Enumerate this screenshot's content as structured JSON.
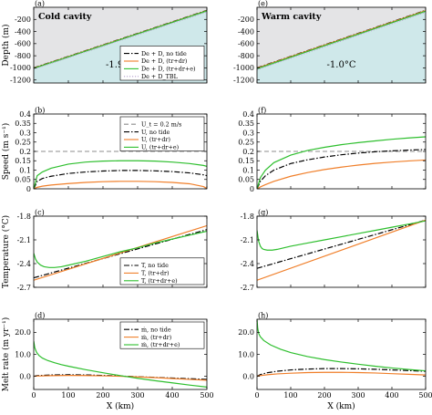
{
  "chart_data": [
    {
      "id": "a",
      "panel_label": "(a)",
      "type": "line",
      "title": "Cold cavity",
      "ylabel": "Depth (m)",
      "xlabel": "",
      "xlim": [
        0,
        500
      ],
      "ylim": [
        -1250,
        0
      ],
      "xticks": [
        0,
        100,
        200,
        300,
        400,
        500
      ],
      "yticks": [
        -1200,
        -1000,
        -800,
        -600,
        -400,
        -200
      ],
      "ytick_labels": [
        "-1200",
        "-1000",
        "-800",
        "-600",
        "-400",
        "-200"
      ],
      "show_xtick_labels": false,
      "annotation": "-1.9°C",
      "ocean_color": "#cfe8ea",
      "ice_color": "#e4e4e6",
      "legend_position": "lower-right",
      "ice_base": {
        "x": [
          0,
          500
        ],
        "y": [
          -1000,
          -50
        ]
      },
      "series": [
        {
          "name": "De + D, no tide",
          "style": "dashdot",
          "color": "#000000",
          "x": [
            0,
            500
          ],
          "y": [
            -1000,
            -50
          ]
        },
        {
          "name": "De + D, (tr+dr)",
          "style": "solid",
          "color": "#f07f2a",
          "x": [
            0,
            500
          ],
          "y": [
            -1005,
            -55
          ]
        },
        {
          "name": "De + D, (tr+dr+e)",
          "style": "solid",
          "color": "#2ebf2e",
          "x": [
            0,
            500
          ],
          "y": [
            -1010,
            -60
          ]
        },
        {
          "name": "De + D_TBL",
          "style": "dotted",
          "color": "#b6a2cf",
          "x": [
            0,
            500
          ],
          "y": [
            -1020,
            -75
          ]
        }
      ]
    },
    {
      "id": "e",
      "panel_label": "(e)",
      "type": "line",
      "title": "Warm cavity",
      "ylabel": "",
      "xlabel": "",
      "xlim": [
        0,
        500
      ],
      "ylim": [
        -1250,
        0
      ],
      "xticks": [
        0,
        100,
        200,
        300,
        400,
        500
      ],
      "yticks": [
        -1200,
        -1000,
        -800,
        -600,
        -400,
        -200
      ],
      "ytick_labels": [
        "-1200",
        "-1000",
        "-800",
        "-600",
        "-400",
        "-200"
      ],
      "show_xtick_labels": false,
      "annotation": "-1.0°C",
      "ocean_color": "#cfe8ea",
      "ice_color": "#e4e4e6",
      "ice_base": {
        "x": [
          0,
          500
        ],
        "y": [
          -1000,
          -50
        ]
      },
      "series": [
        {
          "style": "dashdot",
          "color": "#000000",
          "x": [
            0,
            500
          ],
          "y": [
            -1000,
            -50
          ]
        },
        {
          "style": "solid",
          "color": "#f07f2a",
          "x": [
            0,
            500
          ],
          "y": [
            -1005,
            -55
          ]
        },
        {
          "style": "solid",
          "color": "#2ebf2e",
          "x": [
            0,
            500
          ],
          "y": [
            -1015,
            -65
          ]
        },
        {
          "style": "dotted",
          "color": "#b6a2cf",
          "x": [
            0,
            500
          ],
          "y": [
            -1030,
            -80
          ]
        }
      ]
    },
    {
      "id": "b",
      "panel_label": "(b)",
      "type": "line",
      "ylabel": "Speed (m s⁻¹)",
      "xlabel": "",
      "xlim": [
        0,
        500
      ],
      "ylim": [
        0,
        0.4
      ],
      "xticks": [
        0,
        100,
        200,
        300,
        400,
        500
      ],
      "yticks": [
        0,
        0.05,
        0.1,
        0.15,
        0.2,
        0.25,
        0.3,
        0.35,
        0.4
      ],
      "ytick_labels": [
        "0",
        "0.05",
        "0.1",
        "0.15",
        "0.2",
        "0.25",
        "0.3",
        "0.35",
        "0.4"
      ],
      "show_xtick_labels": false,
      "legend_position": "upper-right",
      "series": [
        {
          "name": "U_t = 0.2 m/s",
          "style": "dashed",
          "color": "#8c8c8c",
          "x": [
            0,
            500
          ],
          "y": [
            0.2,
            0.2
          ]
        },
        {
          "name": "U, no tide",
          "style": "dashdot",
          "color": "#000000",
          "x": [
            0,
            10,
            25,
            50,
            100,
            150,
            200,
            250,
            300,
            350,
            400,
            450,
            490,
            500
          ],
          "y": [
            0.0,
            0.04,
            0.055,
            0.067,
            0.082,
            0.09,
            0.095,
            0.098,
            0.098,
            0.096,
            0.092,
            0.085,
            0.075,
            0.07
          ]
        },
        {
          "name": "U, (tr+dr)",
          "style": "solid",
          "color": "#f07f2a",
          "x": [
            0,
            10,
            25,
            50,
            100,
            150,
            200,
            250,
            300,
            350,
            400,
            450,
            490,
            500
          ],
          "y": [
            0.0,
            0.008,
            0.014,
            0.02,
            0.028,
            0.034,
            0.038,
            0.04,
            0.04,
            0.038,
            0.034,
            0.027,
            0.012,
            0.002
          ]
        },
        {
          "name": "U, (tr+dr+e)",
          "style": "solid",
          "color": "#2ebf2e",
          "x": [
            0,
            10,
            25,
            50,
            100,
            150,
            200,
            250,
            300,
            350,
            400,
            450,
            490,
            500
          ],
          "y": [
            0.0,
            0.07,
            0.09,
            0.11,
            0.132,
            0.143,
            0.148,
            0.15,
            0.15,
            0.148,
            0.143,
            0.135,
            0.125,
            0.12
          ]
        }
      ]
    },
    {
      "id": "f",
      "panel_label": "(f)",
      "type": "line",
      "ylabel": "",
      "xlabel": "",
      "xlim": [
        0,
        500
      ],
      "ylim": [
        0,
        0.4
      ],
      "xticks": [
        0,
        100,
        200,
        300,
        400,
        500
      ],
      "yticks": [
        0,
        0.05,
        0.1,
        0.15,
        0.2,
        0.25,
        0.3,
        0.35,
        0.4
      ],
      "ytick_labels": [
        "0",
        "0.05",
        "0.1",
        "0.15",
        "0.2",
        "0.25",
        "0.3",
        "0.35",
        "0.4"
      ],
      "show_xtick_labels": false,
      "series": [
        {
          "style": "dashed",
          "color": "#8c8c8c",
          "x": [
            0,
            500
          ],
          "y": [
            0.2,
            0.2
          ]
        },
        {
          "style": "dashdot",
          "color": "#000000",
          "x": [
            0,
            10,
            25,
            50,
            100,
            150,
            200,
            250,
            300,
            350,
            400,
            450,
            500
          ],
          "y": [
            0.0,
            0.04,
            0.07,
            0.1,
            0.135,
            0.155,
            0.17,
            0.182,
            0.191,
            0.198,
            0.203,
            0.207,
            0.21
          ]
        },
        {
          "style": "solid",
          "color": "#f07f2a",
          "x": [
            0,
            10,
            25,
            50,
            100,
            150,
            200,
            250,
            300,
            350,
            400,
            450,
            500
          ],
          "y": [
            0.0,
            0.01,
            0.022,
            0.04,
            0.067,
            0.087,
            0.103,
            0.116,
            0.127,
            0.136,
            0.143,
            0.149,
            0.154
          ]
        },
        {
          "style": "solid",
          "color": "#2ebf2e",
          "x": [
            0,
            10,
            25,
            50,
            100,
            150,
            200,
            250,
            300,
            350,
            400,
            450,
            500
          ],
          "y": [
            0.0,
            0.06,
            0.1,
            0.14,
            0.18,
            0.205,
            0.222,
            0.236,
            0.247,
            0.256,
            0.265,
            0.272,
            0.278
          ]
        }
      ]
    },
    {
      "id": "c",
      "panel_label": "(c)",
      "type": "line",
      "ylabel": "Temperature (°C)",
      "xlabel": "",
      "xlim": [
        0,
        500
      ],
      "ylim": [
        -2.7,
        -1.8
      ],
      "xticks": [
        0,
        100,
        200,
        300,
        400,
        500
      ],
      "yticks": [
        -2.7,
        -2.4,
        -2.1,
        -1.8
      ],
      "ytick_labels": [
        "-2.7",
        "-2.4",
        "-2.1",
        "-1.8"
      ],
      "show_xtick_labels": false,
      "legend_position": "lower-right",
      "series": [
        {
          "name": "T, no tide",
          "style": "dashdot",
          "color": "#000000",
          "x": [
            0,
            500
          ],
          "y": [
            -2.58,
            -1.97
          ]
        },
        {
          "name": "T, (tr+dr)",
          "style": "solid",
          "color": "#f07f2a",
          "x": [
            0,
            500
          ],
          "y": [
            -2.61,
            -1.92
          ]
        },
        {
          "name": "T, (tr+dr+e)",
          "style": "solid",
          "color": "#2ebf2e",
          "x": [
            0,
            5,
            10,
            20,
            30,
            45,
            60,
            80,
            100,
            150,
            200,
            250,
            300,
            350,
            400,
            450,
            500
          ],
          "y": [
            -2.27,
            -2.34,
            -2.38,
            -2.42,
            -2.44,
            -2.45,
            -2.45,
            -2.44,
            -2.42,
            -2.37,
            -2.31,
            -2.25,
            -2.2,
            -2.14,
            -2.09,
            -2.04,
            -1.99
          ]
        }
      ]
    },
    {
      "id": "g",
      "panel_label": "(g)",
      "type": "line",
      "ylabel": "",
      "xlabel": "",
      "xlim": [
        0,
        500
      ],
      "ylim": [
        -2.7,
        -1.8
      ],
      "xticks": [
        0,
        100,
        200,
        300,
        400,
        500
      ],
      "yticks": [
        -2.7,
        -2.4,
        -2.1,
        -1.8
      ],
      "ytick_labels": [
        "-2.7",
        "-2.4",
        "-2.1",
        "-1.8"
      ],
      "show_xtick_labels": false,
      "series": [
        {
          "style": "dashdot",
          "color": "#000000",
          "x": [
            0,
            500
          ],
          "y": [
            -2.46,
            -1.85
          ]
        },
        {
          "style": "solid",
          "color": "#f07f2a",
          "x": [
            0,
            500
          ],
          "y": [
            -2.61,
            -1.85
          ]
        },
        {
          "style": "solid",
          "color": "#2ebf2e",
          "x": [
            0,
            5,
            10,
            15,
            20,
            30,
            45,
            60,
            80,
            100,
            150,
            200,
            250,
            300,
            350,
            400,
            450,
            500
          ],
          "y": [
            -1.98,
            -2.12,
            -2.18,
            -2.21,
            -2.22,
            -2.23,
            -2.23,
            -2.22,
            -2.2,
            -2.18,
            -2.14,
            -2.1,
            -2.06,
            -2.02,
            -1.98,
            -1.94,
            -1.9,
            -1.86
          ]
        }
      ]
    },
    {
      "id": "d",
      "panel_label": "(d)",
      "type": "line",
      "ylabel": "Melt rate (m yr⁻¹)",
      "xlabel": "X (km)",
      "xlim": [
        0,
        500
      ],
      "ylim": [
        -6,
        26
      ],
      "xticks": [
        0,
        100,
        200,
        300,
        400,
        500
      ],
      "yticks": [
        0,
        10,
        20
      ],
      "ytick_labels": [
        "0.0",
        "10.0",
        "20.0"
      ],
      "show_xtick_labels": true,
      "legend_position": "upper-right",
      "series": [
        {
          "name": "ṁ, no tide",
          "style": "dashdot",
          "color": "#000000",
          "x": [
            0,
            10,
            50,
            100,
            150,
            200,
            250,
            300,
            350,
            400,
            450,
            500
          ],
          "y": [
            0.0,
            0.3,
            0.6,
            0.7,
            0.6,
            0.4,
            0.1,
            -0.2,
            -0.5,
            -0.8,
            -1.1,
            -1.4
          ]
        },
        {
          "name": "ṁ, (tr+dr)",
          "style": "solid",
          "color": "#f07f2a",
          "x": [
            0,
            10,
            50,
            100,
            150,
            200,
            250,
            300,
            350,
            400,
            450,
            500
          ],
          "y": [
            0.0,
            0.1,
            0.3,
            0.4,
            0.35,
            0.2,
            0.0,
            -0.3,
            -0.6,
            -1.0,
            -1.4,
            -1.8
          ]
        },
        {
          "name": "ṁ, (tr+dr+e)",
          "style": "solid",
          "color": "#2ebf2e",
          "x": [
            0,
            3,
            8,
            15,
            25,
            40,
            60,
            80,
            100,
            150,
            200,
            250,
            300,
            350,
            400,
            450,
            500
          ],
          "y": [
            16.0,
            13.0,
            11.0,
            9.5,
            8.3,
            7.2,
            6.2,
            5.3,
            4.6,
            3.0,
            1.6,
            0.3,
            -0.9,
            -2.0,
            -3.0,
            -4.0,
            -4.9
          ]
        }
      ]
    },
    {
      "id": "h",
      "panel_label": "(h)",
      "type": "line",
      "ylabel": "",
      "xlabel": "X (km)",
      "xlim": [
        0,
        500
      ],
      "ylim": [
        -6,
        26
      ],
      "xticks": [
        0,
        100,
        200,
        300,
        400,
        500
      ],
      "yticks": [
        0,
        10,
        20
      ],
      "ytick_labels": [
        "0.0",
        "10.0",
        "20.0"
      ],
      "show_xtick_labels": true,
      "series": [
        {
          "style": "dashdot",
          "color": "#000000",
          "x": [
            0,
            10,
            30,
            60,
            100,
            150,
            200,
            250,
            300,
            350,
            400,
            450,
            500
          ],
          "y": [
            0.0,
            0.8,
            1.6,
            2.3,
            2.9,
            3.3,
            3.5,
            3.5,
            3.4,
            3.2,
            2.9,
            2.6,
            2.3
          ]
        },
        {
          "style": "solid",
          "color": "#f07f2a",
          "x": [
            0,
            10,
            30,
            60,
            100,
            150,
            200,
            250,
            300,
            350,
            400,
            450,
            500
          ],
          "y": [
            0.0,
            0.3,
            0.7,
            1.1,
            1.4,
            1.7,
            1.8,
            1.8,
            1.7,
            1.5,
            1.2,
            0.9,
            0.6
          ]
        },
        {
          "style": "solid",
          "color": "#2ebf2e",
          "x": [
            0,
            2,
            5,
            10,
            20,
            40,
            70,
            100,
            150,
            200,
            250,
            300,
            350,
            400,
            450,
            500
          ],
          "y": [
            26.0,
            22.0,
            19.5,
            18.0,
            16.3,
            14.3,
            12.3,
            10.8,
            9.0,
            7.6,
            6.5,
            5.5,
            4.6,
            3.8,
            3.1,
            2.5
          ]
        }
      ]
    }
  ]
}
